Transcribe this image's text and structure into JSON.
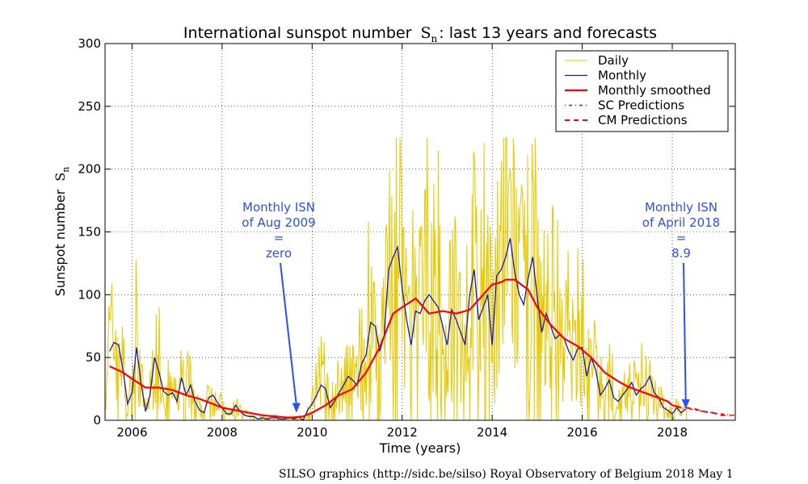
{
  "chart_data": {
    "type": "line",
    "title": "International sunspot number",
    "title_symbol": "S",
    "title_subscript": "n",
    "title_suffix": ": last 13 years and forecasts",
    "xlabel": "Time (years)",
    "ylabel": "Sunspot number",
    "ylabel_symbol": "S",
    "ylabel_subscript": "n",
    "xlim": [
      2005.4,
      2019.4
    ],
    "ylim": [
      0,
      300
    ],
    "x_ticks": [
      2006,
      2008,
      2010,
      2012,
      2014,
      2016,
      2018
    ],
    "x_tick_labels": [
      "2006",
      "2008",
      "2010",
      "2012",
      "2014",
      "2016",
      "2018"
    ],
    "y_ticks": [
      0,
      50,
      100,
      150,
      200,
      250,
      300
    ],
    "y_tick_labels": [
      "0",
      "50",
      "100",
      "150",
      "200",
      "250",
      "300"
    ],
    "grid": true,
    "legend_position": "top-right",
    "legend": [
      "Daily",
      "Monthly",
      "Monthly smoothed",
      "SC Predictions",
      "CM Predictions"
    ],
    "colors": {
      "daily": "#e8c800",
      "monthly": "#1a1aaa",
      "smoothed": "#ff0000",
      "predictions": "#ff0000",
      "annotation": "#2a4fff"
    },
    "series": [
      {
        "name": "Monthly",
        "x": [
          2005.5,
          2005.6,
          2005.7,
          2005.8,
          2005.9,
          2006.0,
          2006.1,
          2006.2,
          2006.3,
          2006.4,
          2006.5,
          2006.6,
          2006.7,
          2006.8,
          2006.9,
          2007.0,
          2007.1,
          2007.2,
          2007.3,
          2007.4,
          2007.5,
          2007.6,
          2007.7,
          2007.8,
          2007.9,
          2008.0,
          2008.1,
          2008.2,
          2008.3,
          2008.4,
          2008.5,
          2008.6,
          2008.7,
          2008.8,
          2008.9,
          2009.0,
          2009.1,
          2009.2,
          2009.3,
          2009.4,
          2009.5,
          2009.6,
          2009.7,
          2009.8,
          2009.9,
          2010.0,
          2010.1,
          2010.2,
          2010.3,
          2010.4,
          2010.5,
          2010.6,
          2010.7,
          2010.8,
          2010.9,
          2011.0,
          2011.1,
          2011.2,
          2011.3,
          2011.4,
          2011.5,
          2011.6,
          2011.7,
          2011.8,
          2011.9,
          2012.0,
          2012.1,
          2012.2,
          2012.3,
          2012.4,
          2012.5,
          2012.6,
          2012.7,
          2012.8,
          2012.9,
          2013.0,
          2013.1,
          2013.2,
          2013.3,
          2013.4,
          2013.5,
          2013.6,
          2013.7,
          2013.8,
          2013.9,
          2014.0,
          2014.1,
          2014.2,
          2014.3,
          2014.4,
          2014.5,
          2014.6,
          2014.7,
          2014.8,
          2014.9,
          2015.0,
          2015.1,
          2015.2,
          2015.3,
          2015.4,
          2015.5,
          2015.6,
          2015.7,
          2015.8,
          2015.9,
          2016.0,
          2016.1,
          2016.2,
          2016.3,
          2016.4,
          2016.5,
          2016.6,
          2016.7,
          2016.8,
          2016.9,
          2017.0,
          2017.1,
          2017.2,
          2017.3,
          2017.4,
          2017.5,
          2017.6,
          2017.7,
          2017.8,
          2017.9,
          2018.0,
          2018.1,
          2018.2,
          2018.3
        ],
        "values": [
          55,
          62,
          60,
          40,
          13,
          22,
          58,
          30,
          7,
          20,
          50,
          38,
          23,
          20,
          22,
          15,
          34,
          20,
          28,
          15,
          8,
          6,
          18,
          20,
          14,
          10,
          5,
          5,
          12,
          7,
          4,
          3,
          3,
          1,
          2,
          1,
          2,
          2,
          1,
          1,
          2,
          1,
          3,
          0,
          8,
          13,
          20,
          28,
          25,
          10,
          15,
          22,
          28,
          35,
          32,
          28,
          45,
          52,
          78,
          75,
          55,
          67,
          120,
          130,
          138,
          105,
          80,
          60,
          87,
          85,
          95,
          100,
          95,
          90,
          75,
          60,
          88,
          80,
          70,
          60,
          100,
          120,
          80,
          90,
          100,
          60,
          115,
          120,
          130,
          145,
          118,
          100,
          92,
          113,
          130,
          98,
          70,
          85,
          75,
          65,
          68,
          65,
          55,
          48,
          57,
          58,
          35,
          50,
          40,
          20,
          25,
          32,
          18,
          15,
          20,
          25,
          30,
          20,
          25,
          28,
          35,
          22,
          18,
          10,
          8,
          5,
          10,
          6,
          9
        ]
      },
      {
        "name": "Monthly smoothed",
        "x": [
          2005.5,
          2005.8,
          2006.0,
          2006.3,
          2006.6,
          2006.9,
          2007.2,
          2007.5,
          2007.8,
          2008.0,
          2008.3,
          2008.6,
          2008.9,
          2009.2,
          2009.5,
          2009.8,
          2010.0,
          2010.3,
          2010.6,
          2010.9,
          2011.2,
          2011.5,
          2011.8,
          2012.0,
          2012.3,
          2012.6,
          2012.9,
          2013.2,
          2013.5,
          2013.8,
          2014.0,
          2014.2,
          2014.3,
          2014.5,
          2014.8,
          2015.0,
          2015.3,
          2015.6,
          2015.9,
          2016.2,
          2016.5,
          2016.8,
          2017.0,
          2017.3,
          2017.6,
          2017.9,
          2018.0,
          2018.2
        ],
        "values": [
          43,
          38,
          33,
          26,
          26,
          24,
          20,
          17,
          13,
          10,
          8,
          6,
          4,
          3,
          2,
          3,
          6,
          12,
          20,
          25,
          38,
          58,
          85,
          90,
          97,
          85,
          87,
          85,
          88,
          100,
          108,
          110,
          112,
          112,
          104,
          90,
          76,
          65,
          59,
          50,
          38,
          31,
          27,
          23,
          19,
          15,
          12,
          10
        ]
      },
      {
        "name": "CM Predictions",
        "x": [
          2018.3,
          2018.5,
          2018.7,
          2018.9,
          2019.1,
          2019.3
        ],
        "values": [
          10,
          9,
          7,
          6,
          4,
          4
        ]
      },
      {
        "name": "SC Predictions",
        "x": [
          2018.3,
          2018.5,
          2018.7,
          2018.9,
          2019.1,
          2019.3,
          2019.4
        ],
        "values": [
          10,
          8,
          7,
          6,
          5,
          4,
          4
        ]
      }
    ],
    "daily_seed": 7,
    "annotations": [
      {
        "lines": [
          "Monthly ISN",
          "of Aug 2009",
          "=",
          "zero"
        ],
        "arrow_to": [
          2009.65,
          6
        ]
      },
      {
        "lines": [
          "Monthly ISN",
          "of April 2018",
          "=",
          "8.9"
        ],
        "arrow_to": [
          2018.3,
          9
        ]
      }
    ]
  },
  "credit": "SILSO graphics (http://sidc.be/silso)  Royal Observatory of Belgium  2018 May 1"
}
